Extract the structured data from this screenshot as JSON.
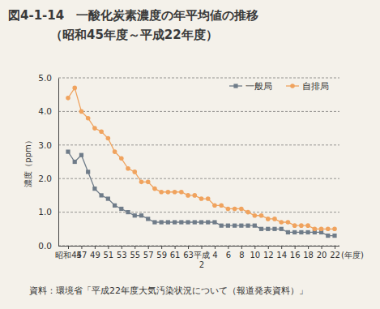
{
  "chart_data": {
    "type": "line",
    "title": "図4-1-14　一酸化炭素濃度の年平均値の推移",
    "subtitle": "（昭和45年度～平成22年度）",
    "x_label": "(年度)",
    "y_label": "濃度（ppm）",
    "source": "資料：環境省「平成22年度大気汚染状況について（報道発表資料）」",
    "categories": [
      "昭和45",
      null,
      "47",
      null,
      "49",
      null,
      "51",
      null,
      "53",
      null,
      "55",
      null,
      "57",
      null,
      "59",
      null,
      "61",
      null,
      "63",
      null,
      "平成2",
      null,
      "4",
      null,
      "6",
      null,
      "8",
      null,
      "10",
      null,
      "12",
      null,
      "14",
      null,
      "16",
      null,
      "18",
      null,
      "20",
      null,
      "22"
    ],
    "series": [
      {
        "name": "一般局",
        "color": "#6f7c89",
        "marker": "square",
        "values": [
          2.8,
          2.5,
          2.7,
          2.2,
          1.7,
          1.5,
          1.4,
          1.2,
          1.1,
          1.0,
          0.9,
          0.9,
          0.8,
          0.7,
          0.7,
          0.7,
          0.7,
          0.7,
          0.7,
          0.7,
          0.7,
          0.7,
          0.7,
          0.6,
          0.6,
          0.6,
          0.6,
          0.6,
          0.6,
          0.5,
          0.5,
          0.5,
          0.5,
          0.4,
          0.4,
          0.4,
          0.4,
          0.4,
          0.4,
          0.3,
          0.3
        ]
      },
      {
        "name": "自排局",
        "color": "#f0a35e",
        "marker": "circle",
        "values": [
          4.4,
          4.7,
          4.0,
          3.8,
          3.5,
          3.4,
          3.2,
          2.8,
          2.6,
          2.3,
          2.2,
          1.9,
          1.9,
          1.7,
          1.6,
          1.6,
          1.6,
          1.6,
          1.5,
          1.5,
          1.4,
          1.4,
          1.2,
          1.2,
          1.1,
          1.1,
          1.1,
          1.0,
          0.9,
          0.9,
          0.8,
          0.8,
          0.7,
          0.7,
          0.6,
          0.6,
          0.6,
          0.5,
          0.5,
          0.5,
          0.5
        ]
      }
    ],
    "ylim": [
      0,
      5
    ],
    "yticks": [
      {
        "value": 0,
        "label": "0.0"
      },
      {
        "value": 1,
        "label": "1.0"
      },
      {
        "value": 2,
        "label": "2.0"
      },
      {
        "value": 3,
        "label": "3.0"
      },
      {
        "value": 4,
        "label": "4.0"
      },
      {
        "value": 5,
        "label": "5.0"
      }
    ],
    "grid": true,
    "legend": "top-right"
  }
}
